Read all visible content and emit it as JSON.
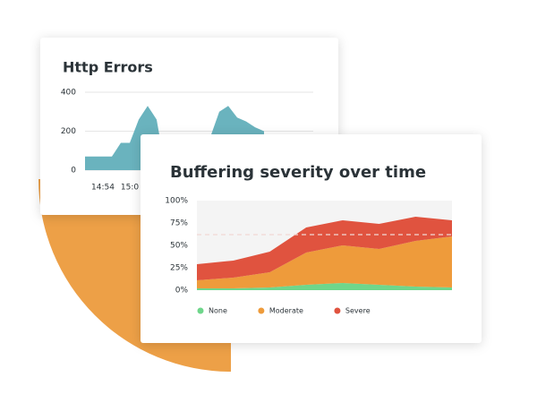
{
  "chart_data": [
    {
      "type": "area",
      "title": "Http Errors",
      "categories": [
        null,
        null,
        "14:54",
        null,
        null,
        "15:0",
        null,
        null,
        null,
        null,
        null,
        null,
        null,
        null,
        null,
        null,
        null,
        null,
        null,
        null,
        null
      ],
      "values": [
        70,
        70,
        70,
        70,
        140,
        140,
        260,
        330,
        260,
        0,
        0,
        0,
        0,
        0,
        170,
        300,
        330,
        270,
        250,
        220,
        200
      ],
      "color": "#6ab3be",
      "ylim": [
        0,
        400
      ],
      "yticks": [
        0,
        200,
        400
      ],
      "grid": true
    },
    {
      "type": "stacked-area",
      "title": "Buffering severity over time",
      "categories": [
        null,
        null,
        null,
        null,
        null,
        null,
        null,
        null
      ],
      "series": [
        {
          "name": "None",
          "color": "#6fd68b",
          "values": [
            2,
            2,
            3,
            6,
            8,
            6,
            4,
            3
          ]
        },
        {
          "name": "Moderate",
          "color": "#ee9b3b",
          "values": [
            9,
            12,
            17,
            36,
            42,
            40,
            51,
            57
          ]
        },
        {
          "name": "Severe",
          "color": "#e0533f",
          "values": [
            18,
            19,
            23,
            28,
            28,
            28,
            27,
            18
          ]
        }
      ],
      "ylim": [
        0,
        100
      ],
      "yticks": [
        {
          "value": 0,
          "label": "0%"
        },
        {
          "value": 25,
          "label": "25%"
        },
        {
          "value": 50,
          "label": "50%"
        },
        {
          "value": 75,
          "label": "75%"
        },
        {
          "value": 100,
          "label": "100%"
        }
      ],
      "threshold": 62,
      "legend": "bottom"
    }
  ]
}
